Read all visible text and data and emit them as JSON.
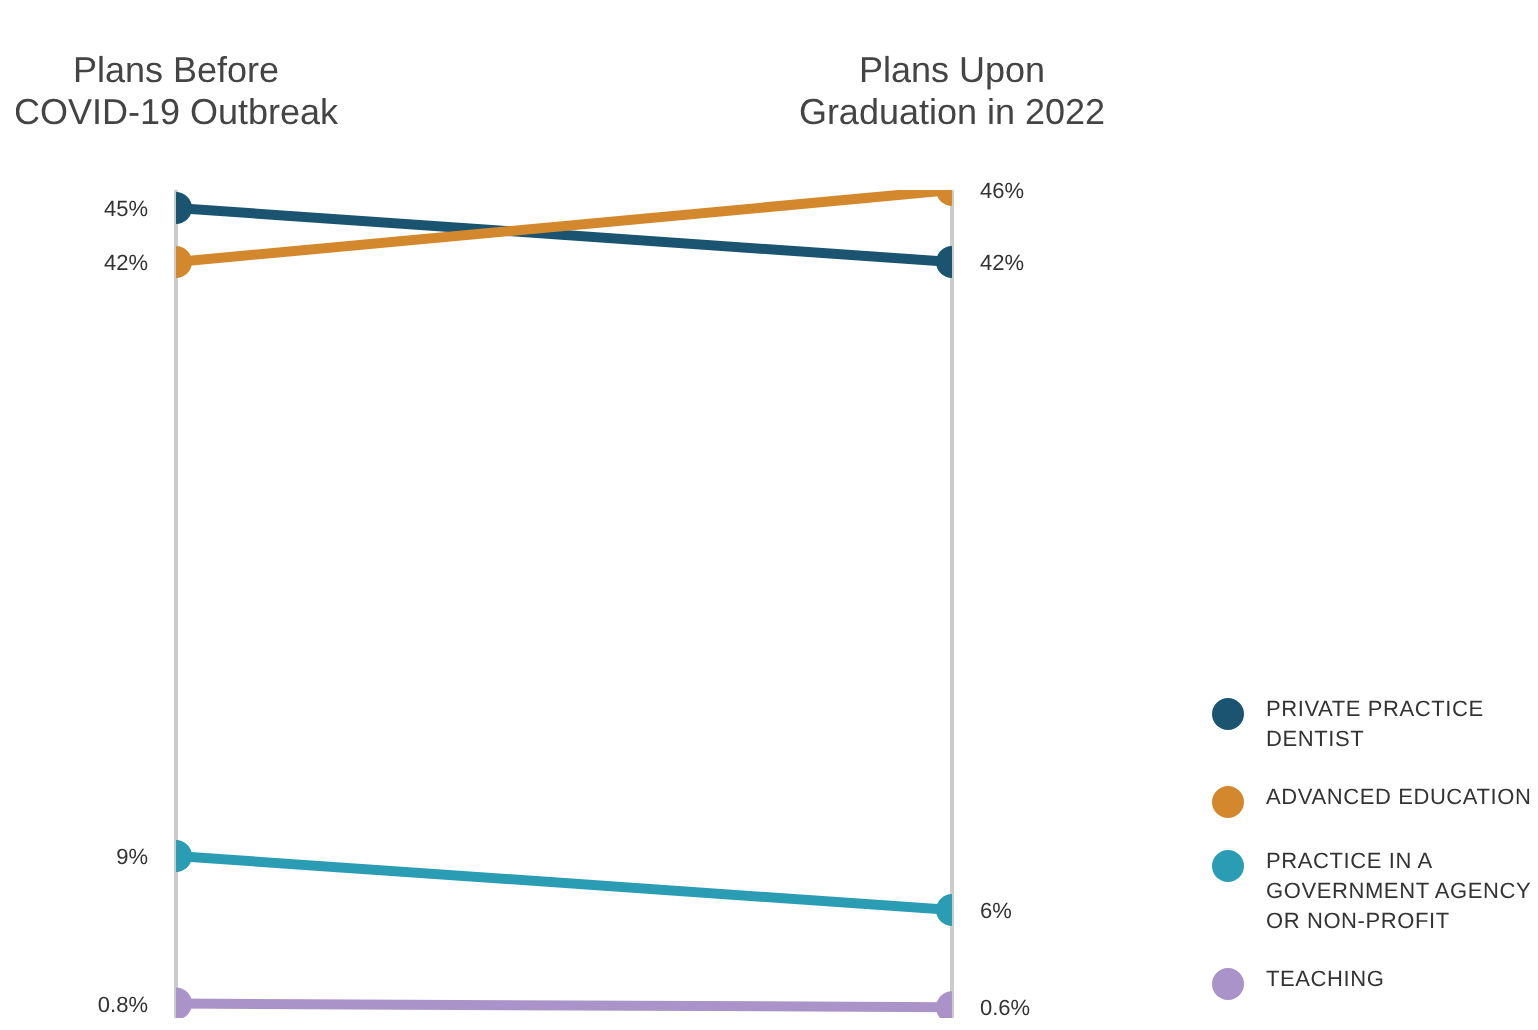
{
  "chart_data": {
    "type": "line",
    "categories": [
      "Plans Before COVID-19 Outbreak",
      "Plans Upon Graduation in 2022"
    ],
    "series": [
      {
        "name": "PRIVATE PRACTICE DENTIST",
        "color": "#1a5470",
        "values": [
          45,
          42
        ],
        "value_labels": [
          "45%",
          "42%"
        ]
      },
      {
        "name": "ADVANCED EDUCATION",
        "color": "#d4882e",
        "values": [
          42,
          46
        ],
        "value_labels": [
          "42%",
          "46%"
        ]
      },
      {
        "name": "PRACTICE IN A GOVERNMENT AGENCY OR NON-PROFIT",
        "color": "#2a9db5",
        "values": [
          9,
          6
        ],
        "value_labels": [
          "9%",
          "6%"
        ]
      },
      {
        "name": "TEACHING",
        "color": "#a993c8",
        "values": [
          0.8,
          0.6
        ],
        "value_labels": [
          "0.8%",
          "0.6%"
        ]
      }
    ],
    "grid": "x",
    "legend": "bottom right",
    "marker": "circle",
    "line_style": "solid"
  }
}
